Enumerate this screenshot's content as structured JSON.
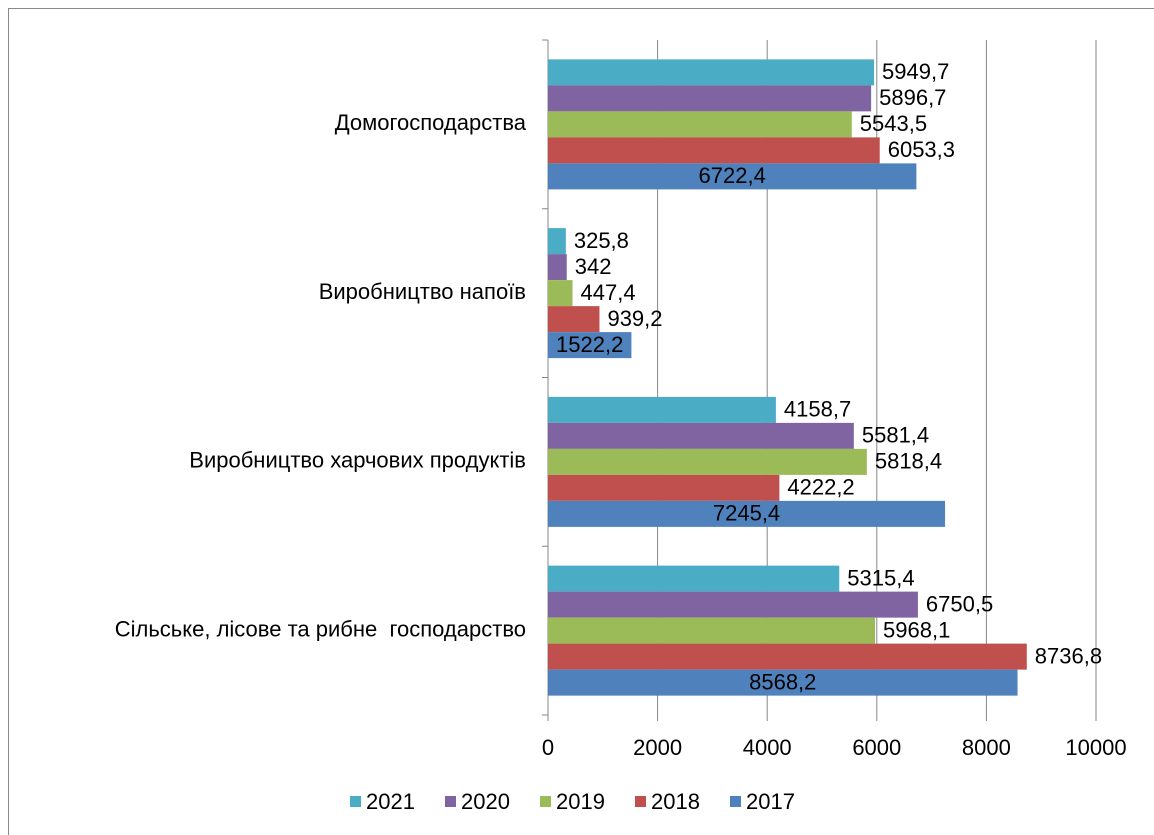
{
  "chart_data": {
    "type": "bar",
    "orientation": "horizontal",
    "categories": [
      "Домогосподарства",
      "Виробництво напоїв",
      "Виробництво харчових продуктів",
      "Сільське, лісове та рибне  господарство"
    ],
    "series": [
      {
        "name": "2021",
        "color": "#4bacc6",
        "values": [
          5949.7,
          325.8,
          4158.7,
          5315.4
        ],
        "value_labels": [
          "5949,7",
          "325,8",
          "4158,7",
          "5315,4"
        ]
      },
      {
        "name": "2020",
        "color": "#8064a2",
        "values": [
          5896.7,
          342,
          5581.4,
          6750.5
        ],
        "value_labels": [
          "5896,7",
          "342",
          "5581,4",
          "6750,5"
        ]
      },
      {
        "name": "2019",
        "color": "#9bbb59",
        "values": [
          5543.5,
          447.4,
          5818.4,
          5968.1
        ],
        "value_labels": [
          "5543,5",
          "447,4",
          "5818,4",
          "5968,1"
        ]
      },
      {
        "name": "2018",
        "color": "#c0504d",
        "values": [
          6053.3,
          939.2,
          4222.2,
          8736.8
        ],
        "value_labels": [
          "6053,3",
          "939,2",
          "4222,2",
          "8736,8"
        ]
      },
      {
        "name": "2017",
        "color": "#4f81bd",
        "values": [
          6722.4,
          1522.2,
          7245.4,
          8568.2
        ],
        "value_labels": [
          "6722,4",
          "1522,2",
          "7245,4",
          "8568,2"
        ]
      }
    ],
    "xlim": [
      0,
      10000
    ],
    "xticks": [
      0,
      2000,
      4000,
      6000,
      8000,
      10000
    ],
    "grid": true,
    "legend": "bottom"
  }
}
